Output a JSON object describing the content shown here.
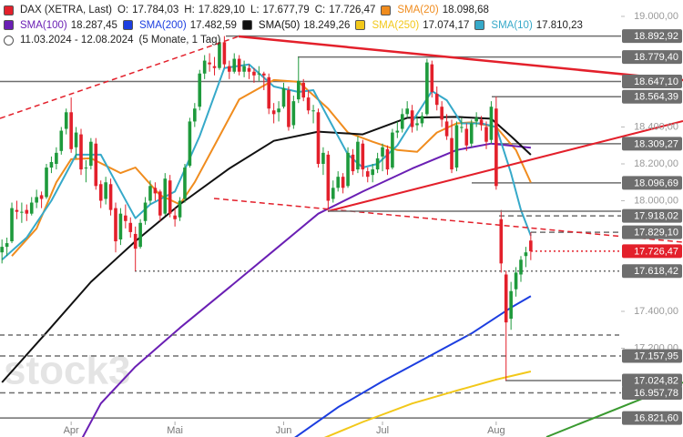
{
  "chart_data": {
    "type": "candlestick",
    "title": "DAX (XETRA, Last)",
    "quote": [
      {
        "label": "O:",
        "value": 17784.03,
        "value_label": "17.784,03"
      },
      {
        "label": "H:",
        "value": 17829.1,
        "value_label": "17.829,10"
      },
      {
        "label": "L:",
        "value": 17677.79,
        "value_label": "17.677,79"
      },
      {
        "label": "C:",
        "value": 17726.47,
        "value_label": "17.726,47"
      }
    ],
    "period": "11.03.2024 - 12.08.2024",
    "span": "(5 Monate, 1 Tag)",
    "watermark": "stock3",
    "up_color": "#1e9a3c",
    "down_color": "#e3202b",
    "xlim": [
      -0.4,
      137.8
    ],
    "ylim": [
      16718.5,
      19088.9
    ],
    "xticks": [
      {
        "value": 14,
        "label": "Apr"
      },
      {
        "value": 35,
        "label": "Mai"
      },
      {
        "value": 57,
        "label": "Jun"
      },
      {
        "value": 77,
        "label": "Jul"
      },
      {
        "value": 100,
        "label": "Aug"
      }
    ],
    "yticks": [
      {
        "value": 19000,
        "label": "19.000,00"
      },
      {
        "value": 18400,
        "label": "18.400,00"
      },
      {
        "value": 18200,
        "label": "18.200,00"
      },
      {
        "value": 18000,
        "label": "18.000,00"
      },
      {
        "value": 17400,
        "label": "17.400,00"
      },
      {
        "value": 17200,
        "label": "17.200,00"
      }
    ],
    "candles": {
      "open": [
        17720,
        17750,
        17780,
        17950,
        17940,
        17950,
        17930,
        17990,
        18030,
        18020,
        18180,
        18200,
        18270,
        18390,
        18480,
        18290,
        18360,
        18180,
        18190,
        18310,
        18090,
        18010,
        18090,
        17960,
        17790,
        17920,
        17880,
        17820,
        17750,
        17890,
        18000,
        18070,
        18050,
        17930,
        18110,
        17920,
        17910,
        18010,
        18190,
        18430,
        18510,
        18690,
        18750,
        18730,
        18720,
        18860,
        18730,
        18700,
        18770,
        18700,
        18720,
        18700,
        18690,
        18690,
        18670,
        18490,
        18480,
        18510,
        18600,
        18410,
        18550,
        18640,
        18560,
        18490,
        18480,
        18200,
        18250,
        18010,
        18070,
        18130,
        18080,
        18250,
        18170,
        18310,
        18160,
        18140,
        18170,
        18240,
        18280,
        18180,
        18370,
        18390,
        18470,
        18490,
        18410,
        18420,
        18470,
        18740,
        18580,
        18510,
        18430,
        18340,
        18180,
        18400,
        18390,
        18310,
        18430,
        18440,
        18400,
        18330,
        18500,
        17900,
        17600,
        17360,
        17520,
        17600,
        17700,
        17784.03
      ],
      "high": [
        17790,
        17800,
        17990,
        18000,
        17990,
        17980,
        18020,
        18060,
        18050,
        18200,
        18240,
        18290,
        18400,
        18500,
        18560,
        18400,
        18390,
        18220,
        18340,
        18340,
        18110,
        18130,
        18120,
        17990,
        17960,
        17980,
        17910,
        17860,
        17900,
        18020,
        18110,
        18100,
        18060,
        18150,
        18140,
        17960,
        18020,
        18200,
        18450,
        18530,
        18710,
        18790,
        18800,
        18780,
        18880,
        18892.92,
        18760,
        18800,
        18790,
        18760,
        18740,
        18720,
        18730,
        18700,
        18690,
        18530,
        18540,
        18640,
        18620,
        18570,
        18779.4,
        18660,
        18600,
        18520,
        18500,
        18290,
        18270,
        18110,
        18160,
        18150,
        18290,
        18280,
        18350,
        18330,
        18180,
        18200,
        18260,
        18310,
        18300,
        18390,
        18430,
        18500,
        18540,
        18520,
        18460,
        18480,
        18770,
        18760,
        18620,
        18540,
        18470,
        18440,
        18430,
        18450,
        18420,
        18440,
        18480,
        18460,
        18430,
        18540,
        18564.39,
        17950,
        17620,
        17560,
        17640,
        17700,
        17750,
        17829.1
      ],
      "low": [
        17660,
        17700,
        17770,
        17900,
        17880,
        17890,
        17920,
        17960,
        17960,
        18010,
        18150,
        18170,
        18250,
        18360,
        18260,
        18230,
        18140,
        18100,
        18170,
        18060,
        17960,
        17980,
        17920,
        17720,
        17760,
        17850,
        17800,
        17618.42,
        17740,
        17870,
        17980,
        18000,
        17890,
        17920,
        17910,
        17860,
        17890,
        17990,
        18180,
        18400,
        18490,
        18660,
        18700,
        18680,
        18710,
        18720,
        18660,
        18690,
        18680,
        18670,
        18660,
        18640,
        18650,
        18600,
        18470,
        18420,
        18430,
        18500,
        18380,
        18390,
        18530,
        18540,
        18470,
        18420,
        18180,
        18140,
        17951,
        17990,
        18050,
        18040,
        18070,
        18140,
        18150,
        18130,
        18100,
        18100,
        18150,
        18160,
        18140,
        18170,
        18340,
        18370,
        18450,
        18370,
        18380,
        18400,
        18460,
        18560,
        18490,
        18400,
        18330,
        18150,
        18160,
        18370,
        18270,
        18290,
        18400,
        18380,
        18280,
        18310,
        18060,
        17610,
        17024.82,
        17300,
        17480,
        17560,
        17640,
        17677.79
      ],
      "close": [
        17750,
        17770,
        17960,
        17940,
        17940,
        17930,
        17990,
        18020,
        18010,
        18180,
        18210,
        18260,
        18380,
        18480,
        18280,
        18370,
        18170,
        18180,
        18320,
        18080,
        18000,
        18100,
        17950,
        17780,
        17930,
        17890,
        17830,
        17740,
        17880,
        17990,
        18080,
        18040,
        17920,
        18120,
        17930,
        17900,
        18000,
        18180,
        18430,
        18500,
        18690,
        18760,
        18740,
        18720,
        18860,
        18740,
        18700,
        18770,
        18700,
        18730,
        18700,
        18680,
        18690,
        18680,
        18500,
        18470,
        18500,
        18610,
        18400,
        18540,
        18650,
        18560,
        18490,
        18490,
        18200,
        18260,
        18000,
        18070,
        18130,
        18070,
        18260,
        18160,
        18320,
        18170,
        18130,
        18170,
        18230,
        18290,
        18170,
        18370,
        18380,
        18470,
        18500,
        18400,
        18420,
        18460,
        18750,
        18590,
        18520,
        18440,
        18350,
        18170,
        18410,
        18400,
        18300,
        18420,
        18450,
        18410,
        18320,
        18510,
        18080,
        17660,
        17340,
        17510,
        17610,
        17680,
        17720,
        17726.47
      ]
    },
    "series": [
      {
        "name": "SMA(20)",
        "color": "#f08c1e",
        "last_label": "18.098,68",
        "x": [
          2,
          7,
          11,
          14,
          18,
          24,
          27,
          32,
          36,
          39,
          44,
          48,
          55,
          60,
          66,
          70,
          75,
          80,
          84,
          88,
          92,
          95,
          100,
          104,
          107
        ],
        "values": [
          17700,
          17850,
          18100,
          18225,
          18230,
          18150,
          18180,
          18030,
          17980,
          18100,
          18350,
          18550,
          18655,
          18645,
          18500,
          18370,
          18320,
          18275,
          18265,
          18370,
          18420,
          18425,
          18400,
          18275,
          18098.68
        ]
      },
      {
        "name": "SMA(100)",
        "color": "#6a1fb4",
        "last_label": "18.287,45",
        "x": [
          16,
          20,
          27,
          36,
          46,
          55,
          64,
          73,
          83,
          92,
          99,
          107
        ],
        "values": [
          16700,
          16900,
          17100,
          17310,
          17530,
          17730,
          17930,
          18050,
          18175,
          18275,
          18310,
          18287.45
        ]
      },
      {
        "name": "SMA(200)",
        "color": "#1c3ee0",
        "last_label": "17.482,59",
        "x": [
          59,
          68,
          77,
          86,
          95,
          103,
          107
        ],
        "values": [
          16710,
          16880,
          17020,
          17150,
          17280,
          17420,
          17482.59
        ]
      },
      {
        "name": "SMA(50)",
        "color": "#111111",
        "last_label": "18.249,26",
        "x": [
          0,
          9,
          18,
          27,
          36,
          46,
          55,
          64,
          73,
          82,
          92,
          99,
          103,
          107
        ],
        "values": [
          17015,
          17285,
          17560,
          17780,
          17980,
          18175,
          18325,
          18375,
          18360,
          18450,
          18455,
          18445,
          18350,
          18249.26
        ]
      },
      {
        "name": "SMA(250)",
        "color": "#f2c81a",
        "last_label": "17.074,17",
        "x": [
          64,
          73,
          83,
          92,
          100,
          107
        ],
        "values": [
          16700,
          16800,
          16900,
          16970,
          17030,
          17074.17
        ]
      },
      {
        "name": "SMA(10)",
        "color": "#36a9c9",
        "last_label": "17.810,23",
        "x": [
          0,
          5,
          10,
          15,
          20,
          27,
          30,
          35,
          40,
          45,
          50,
          55,
          60,
          63,
          66,
          70,
          73,
          76,
          80,
          84,
          87,
          90,
          93,
          97,
          100,
          103,
          105,
          107
        ],
        "values": [
          17680,
          17800,
          18000,
          18250,
          18250,
          17905,
          17980,
          18050,
          18350,
          18720,
          18740,
          18620,
          18590,
          18600,
          18450,
          18250,
          18180,
          18200,
          18300,
          18470,
          18595,
          18545,
          18420,
          18420,
          18400,
          18150,
          17950,
          17810.23
        ]
      }
    ],
    "levels": [
      {
        "value": 18892.92,
        "label": "18.892,92",
        "style": "solid",
        "color": "#6e6e6e"
      },
      {
        "value": 18779.4,
        "label": "18.779,40",
        "style": "solid",
        "color": "#6e6e6e"
      },
      {
        "value": 18647.1,
        "label": "18.647,10",
        "style": "solid",
        "color": "#6e6e6e"
      },
      {
        "value": 18564.39,
        "label": "18.564,39",
        "style": "solid",
        "color": "#6e6e6e"
      },
      {
        "value": 18309.27,
        "label": "18.309,27",
        "style": "solid",
        "color": "#6e6e6e"
      },
      {
        "value": 18096.69,
        "label": "18.096,69",
        "style": "solid",
        "color": "#6e6e6e"
      },
      {
        "value": 17918.02,
        "label": "17.918,02",
        "style": "dashed",
        "color": "#6e6e6e"
      },
      {
        "value": 17829.1,
        "label": "17.829,10",
        "style": "dashed",
        "color": "#6e6e6e"
      },
      {
        "value": 17726.47,
        "label": "17.726,47",
        "style": "dotted",
        "color": "#e3202b"
      },
      {
        "value": 17618.42,
        "label": "17.618,42",
        "style": "dotted",
        "color": "#6e6e6e"
      },
      {
        "value": 17157.95,
        "label": "17.157,95",
        "style": "dashed",
        "color": "#6e6e6e"
      },
      {
        "value": 17024.82,
        "label": "17.024,82",
        "style": "solid",
        "color": "#6e6e6e"
      },
      {
        "value": 16957.78,
        "label": "16.957,78",
        "style": "dashed",
        "color": "#6e6e6e"
      },
      {
        "value": 16821.6,
        "label": "16.821,60",
        "style": "solid",
        "color": "#6e6e6e"
      }
    ]
  }
}
